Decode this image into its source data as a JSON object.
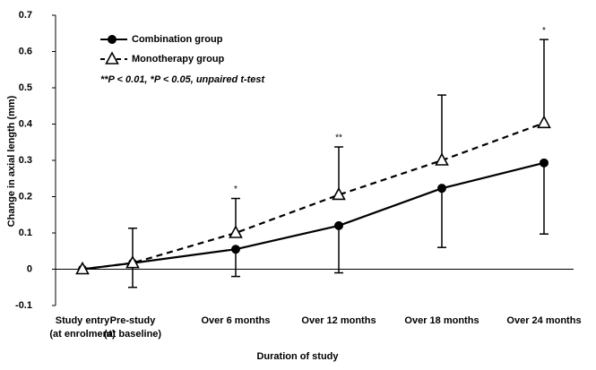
{
  "chart_data": {
    "type": "line",
    "x_label": "Duration of study",
    "y_label": "Change in axial length  (mm)",
    "categories": [
      "Study entry\n(at enrolment)",
      "Pre-study\n(at baseline)",
      "Over 6 months",
      "Over 12 months",
      "Over 18 months",
      "Over 24 months"
    ],
    "series": [
      {
        "name": "Combination group",
        "color": "#000000",
        "line_style": "solid",
        "marker": "filled-circle",
        "error_direction": "down",
        "values": [
          0,
          0.017,
          0.055,
          0.12,
          0.223,
          0.293
        ],
        "errors": [
          null,
          0.067,
          0.075,
          0.13,
          0.163,
          0.196
        ]
      },
      {
        "name": "Monotherapy group",
        "color": "#000000",
        "line_style": "dashed",
        "marker": "open-triangle",
        "error_direction": "up",
        "values": [
          0,
          0.017,
          0.1,
          0.205,
          0.3,
          0.403
        ],
        "errors": [
          null,
          0.096,
          0.095,
          0.132,
          0.18,
          0.23
        ]
      }
    ],
    "significance": [
      null,
      null,
      "*",
      "**",
      null,
      "*"
    ],
    "note": "**P < 0.01,  *P < 0.05,  unpaired t-test",
    "ylim": [
      -0.1,
      0.7
    ],
    "yticks": [
      -0.1,
      0,
      0.1,
      0.2,
      0.3,
      0.4,
      0.5,
      0.6,
      0.7
    ],
    "grid": false
  }
}
